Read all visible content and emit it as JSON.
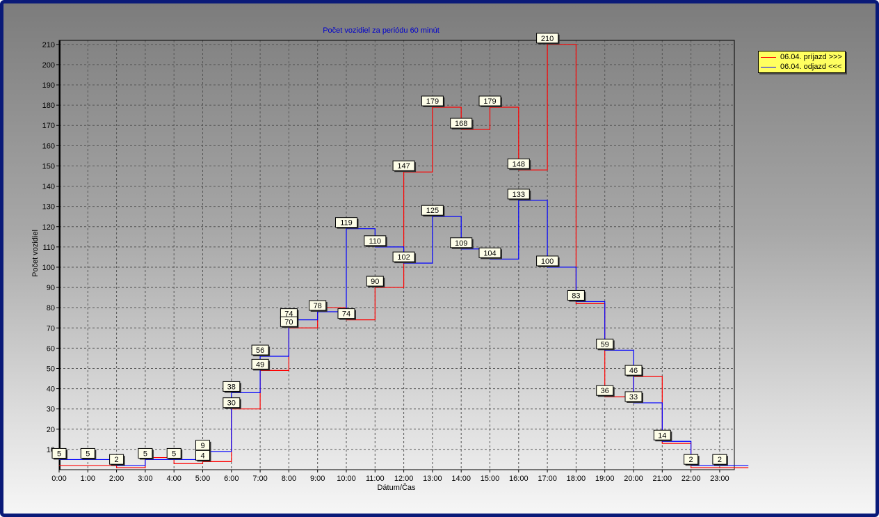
{
  "chart_data": {
    "type": "line",
    "step": true,
    "title": "Počet vozidiel za periódu 60 minút",
    "xlabel": "Dátum/Čas",
    "ylabel": "Počet vozidiel",
    "categories": [
      "0:00",
      "1:00",
      "2:00",
      "3:00",
      "4:00",
      "5:00",
      "6:00",
      "7:00",
      "8:00",
      "9:00",
      "10:00",
      "11:00",
      "12:00",
      "13:00",
      "14:00",
      "15:00",
      "16:00",
      "17:00",
      "18:00",
      "19:00",
      "20:00",
      "21:00",
      "22:00",
      "23:00"
    ],
    "ylim": [
      0,
      212
    ],
    "yticks": [
      10,
      20,
      30,
      40,
      50,
      60,
      70,
      80,
      90,
      100,
      110,
      120,
      130,
      140,
      150,
      160,
      170,
      180,
      190,
      200,
      210
    ],
    "grid": true,
    "legend_position": "top-right",
    "series": [
      {
        "name": "06.04. príjazd >>>",
        "color": "#ff0000",
        "values": [
          2,
          2,
          1,
          6,
          3,
          4,
          30,
          49,
          70,
          80,
          74,
          90,
          147,
          179,
          168,
          179,
          148,
          210,
          82,
          36,
          46,
          13,
          1,
          1
        ]
      },
      {
        "name": "06.04. odjazd <<<",
        "color": "#0000ff",
        "values": [
          5,
          5,
          2,
          5,
          5,
          9,
          38,
          56,
          74,
          78,
          119,
          110,
          102,
          125,
          109,
          104,
          133,
          100,
          83,
          59,
          33,
          14,
          2,
          2
        ]
      }
    ],
    "data_labels": [
      {
        "x": "0:00",
        "text": "5",
        "y": 5
      },
      {
        "x": "1:00",
        "text": "5",
        "y": 5
      },
      {
        "x": "2:00",
        "text": "2",
        "y": 2
      },
      {
        "x": "3:00",
        "text": "5",
        "y": 5
      },
      {
        "x": "4:00",
        "text": "5",
        "y": 5
      },
      {
        "x": "5:00",
        "text": "9",
        "y": 9
      },
      {
        "x": "5:00",
        "text": "4",
        "y": 4
      },
      {
        "x": "6:00",
        "text": "38",
        "y": 38
      },
      {
        "x": "6:00",
        "text": "30",
        "y": 30
      },
      {
        "x": "7:00",
        "text": "56",
        "y": 56
      },
      {
        "x": "7:00",
        "text": "49",
        "y": 49
      },
      {
        "x": "8:00",
        "text": "74",
        "y": 74
      },
      {
        "x": "8:00",
        "text": "70",
        "y": 70
      },
      {
        "x": "9:00",
        "text": "78",
        "y": 78
      },
      {
        "x": "10:00",
        "text": "119",
        "y": 119
      },
      {
        "x": "10:00",
        "text": "74",
        "y": 74
      },
      {
        "x": "11:00",
        "text": "110",
        "y": 110
      },
      {
        "x": "11:00",
        "text": "90",
        "y": 90
      },
      {
        "x": "12:00",
        "text": "147",
        "y": 147
      },
      {
        "x": "12:00",
        "text": "102",
        "y": 102
      },
      {
        "x": "13:00",
        "text": "179",
        "y": 179
      },
      {
        "x": "13:00",
        "text": "125",
        "y": 125
      },
      {
        "x": "14:00",
        "text": "168",
        "y": 168
      },
      {
        "x": "14:00",
        "text": "109",
        "y": 109
      },
      {
        "x": "15:00",
        "text": "179",
        "y": 179
      },
      {
        "x": "15:00",
        "text": "104",
        "y": 104
      },
      {
        "x": "16:00",
        "text": "148",
        "y": 148
      },
      {
        "x": "16:00",
        "text": "133",
        "y": 133
      },
      {
        "x": "17:00",
        "text": "210",
        "y": 210
      },
      {
        "x": "17:00",
        "text": "100",
        "y": 100
      },
      {
        "x": "18:00",
        "text": "83",
        "y": 83
      },
      {
        "x": "19:00",
        "text": "59",
        "y": 59
      },
      {
        "x": "19:00",
        "text": "36",
        "y": 36
      },
      {
        "x": "20:00",
        "text": "46",
        "y": 46
      },
      {
        "x": "20:00",
        "text": "33",
        "y": 33
      },
      {
        "x": "21:00",
        "text": "14",
        "y": 14
      },
      {
        "x": "22:00",
        "text": "2",
        "y": 2
      },
      {
        "x": "23:00",
        "text": "2",
        "y": 2
      }
    ]
  }
}
